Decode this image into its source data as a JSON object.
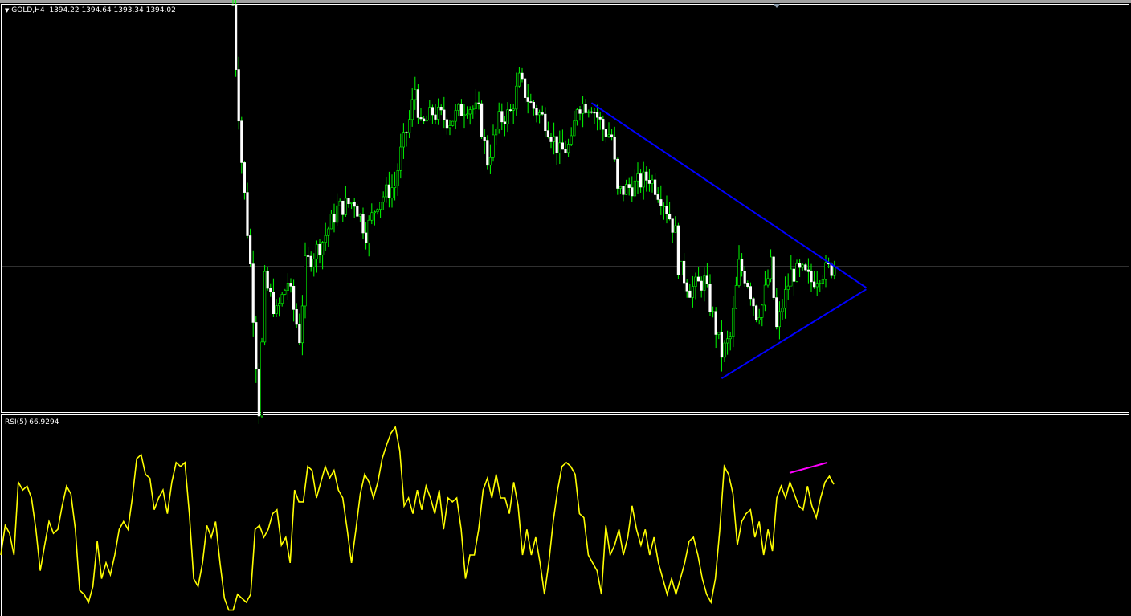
{
  "header": {
    "symbol_label": "GOLD,H4",
    "ohlc": "1394.22 1394.64 1393.34 1394.02"
  },
  "rsi_header": {
    "label": "RSI(5) 66.9294"
  },
  "colors": {
    "background": "#000000",
    "bull_wick": "#00ff00",
    "bear_body": "#ffffff",
    "trendline": "#0000ff",
    "rsi_line": "#ffff00",
    "rsi_trendline": "#ff00ff",
    "bid_line": "#c0c0c0"
  },
  "chart_data": [
    {
      "type": "candlestick",
      "title": "GOLD,H4",
      "last_price": 1394.02,
      "grid": false,
      "price_path": [
        [
          0,
          1426.7
        ],
        [
          1,
          1419.2
        ],
        [
          3,
          1407.2
        ],
        [
          6,
          1394.2
        ],
        [
          8,
          1382.2
        ],
        [
          9,
          1376.2
        ],
        [
          11,
          1392.2
        ],
        [
          15,
          1388.2
        ],
        [
          19,
          1392.2
        ],
        [
          23,
          1385.2
        ],
        [
          25,
          1394.2
        ],
        [
          31,
          1397.2
        ],
        [
          36,
          1401.2
        ],
        [
          42,
          1402.2
        ],
        [
          46,
          1398.2
        ],
        [
          50,
          1402.2
        ],
        [
          56,
          1404.2
        ],
        [
          58,
          1408.2
        ],
        [
          61,
          1412.2
        ],
        [
          63,
          1416.2
        ],
        [
          65,
          1411.2
        ],
        [
          69,
          1413.2
        ],
        [
          75,
          1412.2
        ],
        [
          81,
          1414.2
        ],
        [
          85,
          1413.2
        ],
        [
          88,
          1407.2
        ],
        [
          92,
          1412.2
        ],
        [
          96,
          1413.2
        ],
        [
          99,
          1417.2
        ],
        [
          103,
          1414.2
        ],
        [
          108,
          1412.2
        ],
        [
          113,
          1408.2
        ],
        [
          117,
          1409.2
        ],
        [
          119,
          1414.2
        ],
        [
          124,
          1414.2
        ],
        [
          128,
          1411.2
        ],
        [
          131,
          1410.2
        ],
        [
          133,
          1403.2
        ],
        [
          139,
          1404.2
        ],
        [
          144,
          1405.2
        ],
        [
          149,
          1402.2
        ],
        [
          153,
          1398.2
        ],
        [
          154,
          1394.2
        ],
        [
          158,
          1391.2
        ],
        [
          163,
          1392.2
        ],
        [
          165,
          1389.2
        ],
        [
          169,
          1383.2
        ],
        [
          172,
          1385.2
        ],
        [
          175,
          1394.2
        ],
        [
          178,
          1392.2
        ],
        [
          181,
          1388.2
        ],
        [
          183,
          1389.2
        ],
        [
          186,
          1394.2
        ],
        [
          188,
          1386.2
        ],
        [
          190,
          1389.2
        ],
        [
          193,
          1393.2
        ],
        [
          197,
          1393.2
        ],
        [
          200,
          1392.2
        ],
        [
          203,
          1393.2
        ],
        [
          208,
          1394.0
        ]
      ],
      "trendlines": [
        {
          "from": [
            124,
            1414.4
          ],
          "to": [
            219,
            1391.4
          ]
        },
        {
          "from": [
            169,
            1380.1
          ],
          "to": [
            219,
            1391.2
          ]
        }
      ]
    },
    {
      "type": "line",
      "title": "RSI(5)",
      "ylim": [
        0,
        100
      ],
      "last_value": 66.9294,
      "values": [
        31,
        46,
        42,
        31,
        68,
        64,
        66,
        60,
        44,
        23,
        36,
        48,
        42,
        44,
        56,
        66,
        62,
        44,
        13,
        11,
        7,
        15,
        38,
        19,
        27,
        21,
        31,
        44,
        48,
        44,
        60,
        80,
        82,
        72,
        70,
        54,
        60,
        64,
        52,
        68,
        78,
        76,
        78,
        52,
        19,
        15,
        27,
        46,
        40,
        48,
        27,
        9,
        3,
        3,
        11,
        9,
        7,
        11,
        44,
        46,
        40,
        44,
        52,
        54,
        36,
        40,
        27,
        64,
        58,
        58,
        76,
        74,
        60,
        68,
        76,
        70,
        74,
        64,
        60,
        44,
        27,
        44,
        62,
        72,
        68,
        60,
        68,
        80,
        87,
        93,
        96,
        84,
        56,
        60,
        52,
        64,
        54,
        66,
        60,
        52,
        64,
        44,
        60,
        58,
        60,
        44,
        19,
        31,
        31,
        44,
        64,
        70,
        60,
        72,
        60,
        60,
        52,
        68,
        56,
        31,
        44,
        31,
        40,
        27,
        11,
        27,
        48,
        64,
        76,
        78,
        76,
        72,
        52,
        50,
        31,
        27,
        23,
        11,
        46,
        31,
        36,
        44,
        31,
        40,
        56,
        44,
        36,
        44,
        31,
        40,
        27,
        19,
        11,
        19,
        11,
        19,
        27,
        38,
        40,
        31,
        19,
        11,
        7,
        19,
        44,
        76,
        72,
        62,
        36,
        48,
        52,
        54,
        40,
        48,
        31,
        44,
        33,
        60,
        66,
        60,
        68,
        62,
        56,
        54,
        66,
        56,
        50,
        60,
        68,
        71,
        66.9
      ],
      "trendline": {
        "from": [
          192.5,
          72.7
        ],
        "to": [
          205.6,
          78
        ]
      }
    }
  ]
}
